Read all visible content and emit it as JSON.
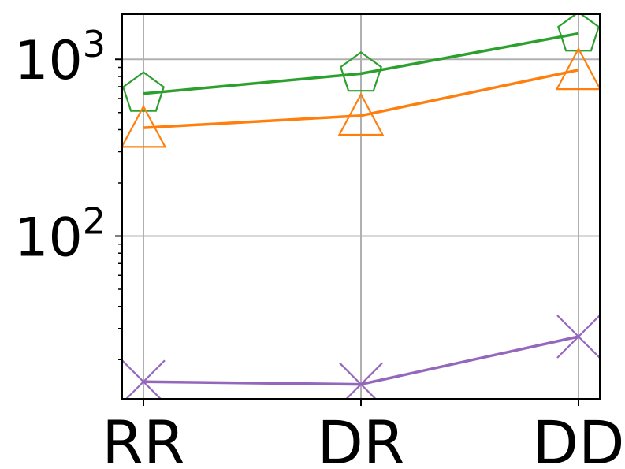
{
  "chart_data": {
    "type": "line",
    "categories": [
      "RR",
      "DR",
      "DD"
    ],
    "y_scale": "log",
    "ylim": [
      12,
      1800
    ],
    "y_ticks": [
      {
        "value": 100,
        "base": "10",
        "exponent": "2"
      },
      {
        "value": 1000,
        "base": "10",
        "exponent": "3"
      }
    ],
    "grid": true,
    "legend": "none",
    "series": [
      {
        "values": [
          640,
          830,
          1400
        ],
        "color": "#2ca02c",
        "marker": "pentagon"
      },
      {
        "values": [
          410,
          480,
          870
        ],
        "color": "#ff7f0e",
        "marker": "triangle"
      },
      {
        "values": [
          15,
          14.5,
          27
        ],
        "color": "#9467bd",
        "marker": "x"
      }
    ]
  }
}
